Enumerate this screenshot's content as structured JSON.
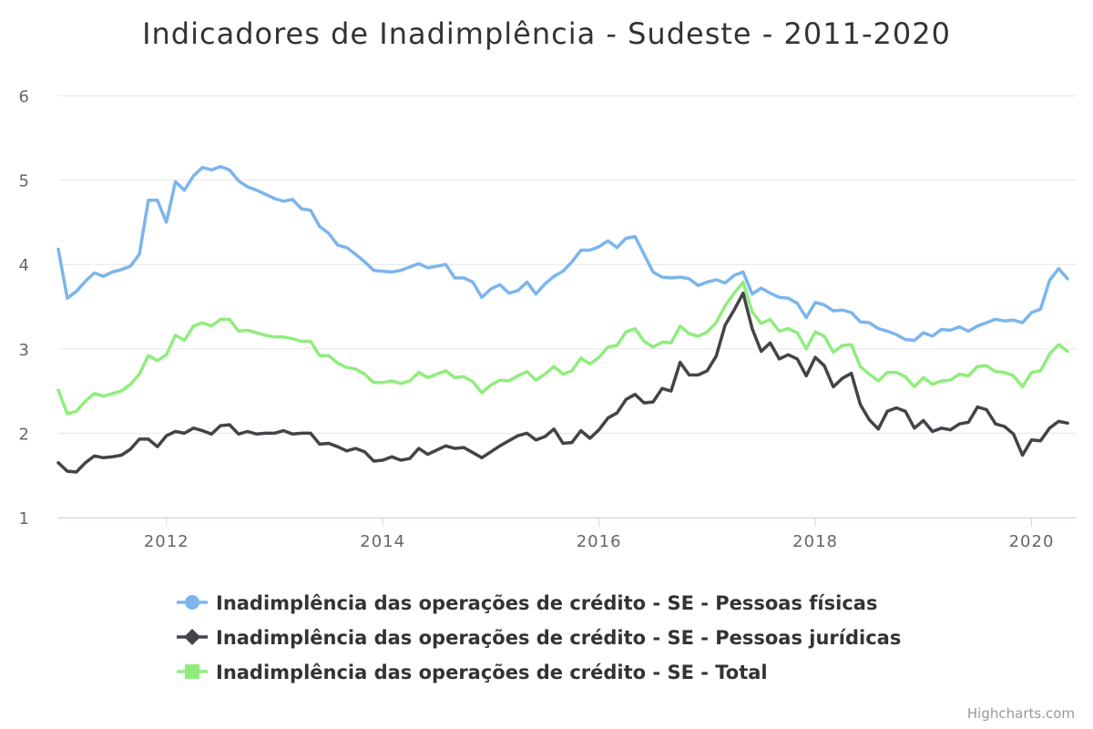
{
  "chart_data": {
    "type": "line",
    "title": "Indicadores de Inadimplência - Sudeste - 2011-2020",
    "xlabel": "",
    "ylabel": "",
    "ylim": [
      1,
      6
    ],
    "xlim": [
      "2011-01",
      "2020-06"
    ],
    "yticks": [
      "1",
      "2",
      "3",
      "4",
      "5",
      "6"
    ],
    "xticks": [
      {
        "label": "2012",
        "value": 2012
      },
      {
        "label": "2014",
        "value": 2014
      },
      {
        "label": "2016",
        "value": 2016
      },
      {
        "label": "2018",
        "value": 2018
      },
      {
        "label": "2020",
        "value": 2020
      }
    ],
    "grid": true,
    "legend_position": "bottom-center",
    "x_start": "2011-01",
    "series": [
      {
        "name": "Inadimplência das operações de crédito - SE - Pessoas físicas",
        "color": "#7cb5ec",
        "marker": "circle",
        "values": [
          4.18,
          3.6,
          3.68,
          3.8,
          3.9,
          3.86,
          3.91,
          3.94,
          3.98,
          4.12,
          4.76,
          4.76,
          4.5,
          4.98,
          4.88,
          5.05,
          5.15,
          5.12,
          5.16,
          5.12,
          4.99,
          4.92,
          4.88,
          4.83,
          4.78,
          4.75,
          4.77,
          4.66,
          4.64,
          4.45,
          4.37,
          4.23,
          4.2,
          4.12,
          4.03,
          3.93,
          3.92,
          3.91,
          3.93,
          3.97,
          4.01,
          3.96,
          3.98,
          4.0,
          3.84,
          3.84,
          3.79,
          3.61,
          3.71,
          3.76,
          3.66,
          3.69,
          3.79,
          3.65,
          3.77,
          3.86,
          3.92,
          4.03,
          4.17,
          4.17,
          4.21,
          4.28,
          4.2,
          4.31,
          4.33,
          4.12,
          3.91,
          3.85,
          3.84,
          3.85,
          3.83,
          3.75,
          3.79,
          3.82,
          3.78,
          3.87,
          3.91,
          3.65,
          3.72,
          3.66,
          3.61,
          3.6,
          3.54,
          3.37,
          3.55,
          3.52,
          3.45,
          3.46,
          3.43,
          3.32,
          3.31,
          3.24,
          3.21,
          3.17,
          3.11,
          3.1,
          3.19,
          3.15,
          3.23,
          3.22,
          3.26,
          3.21,
          3.27,
          3.31,
          3.35,
          3.33,
          3.34,
          3.31,
          3.43,
          3.47,
          3.81,
          3.95,
          3.83
        ]
      },
      {
        "name": "Inadimplência das operações de crédito - SE - Pessoas jurídicas",
        "color": "#434348",
        "marker": "diamond",
        "values": [
          1.65,
          1.55,
          1.54,
          1.65,
          1.73,
          1.71,
          1.72,
          1.74,
          1.81,
          1.93,
          1.93,
          1.84,
          1.97,
          2.02,
          2.0,
          2.06,
          2.03,
          1.99,
          2.09,
          2.1,
          1.99,
          2.02,
          1.99,
          2.0,
          2.0,
          2.03,
          1.99,
          2.0,
          2.0,
          1.87,
          1.88,
          1.84,
          1.79,
          1.82,
          1.78,
          1.67,
          1.68,
          1.72,
          1.68,
          1.7,
          1.82,
          1.75,
          1.8,
          1.85,
          1.82,
          1.83,
          1.77,
          1.71,
          1.78,
          1.85,
          1.91,
          1.97,
          2.0,
          1.92,
          1.96,
          2.05,
          1.88,
          1.89,
          2.03,
          1.94,
          2.04,
          2.18,
          2.24,
          2.4,
          2.46,
          2.36,
          2.37,
          2.53,
          2.5,
          2.84,
          2.69,
          2.69,
          2.74,
          2.91,
          3.28,
          3.46,
          3.66,
          3.24,
          2.97,
          3.07,
          2.88,
          2.93,
          2.88,
          2.68,
          2.9,
          2.8,
          2.55,
          2.65,
          2.71,
          2.34,
          2.16,
          2.05,
          2.26,
          2.3,
          2.26,
          2.06,
          2.15,
          2.02,
          2.06,
          2.04,
          2.11,
          2.13,
          2.31,
          2.28,
          2.11,
          2.08,
          1.99,
          1.74,
          1.92,
          1.91,
          2.06,
          2.14,
          2.12
        ]
      },
      {
        "name": "Inadimplência das operações de crédito - SE - Total",
        "color": "#90ed7d",
        "marker": "square",
        "values": [
          2.51,
          2.23,
          2.26,
          2.38,
          2.47,
          2.44,
          2.47,
          2.5,
          2.58,
          2.7,
          2.92,
          2.86,
          2.93,
          3.16,
          3.1,
          3.27,
          3.31,
          3.27,
          3.35,
          3.35,
          3.21,
          3.22,
          3.19,
          3.16,
          3.14,
          3.14,
          3.12,
          3.09,
          3.09,
          2.92,
          2.92,
          2.83,
          2.78,
          2.76,
          2.7,
          2.6,
          2.6,
          2.62,
          2.59,
          2.62,
          2.72,
          2.66,
          2.7,
          2.74,
          2.66,
          2.67,
          2.61,
          2.48,
          2.57,
          2.63,
          2.62,
          2.68,
          2.73,
          2.63,
          2.7,
          2.79,
          2.7,
          2.74,
          2.89,
          2.82,
          2.9,
          3.02,
          3.04,
          3.2,
          3.24,
          3.09,
          3.02,
          3.08,
          3.07,
          3.27,
          3.18,
          3.15,
          3.2,
          3.31,
          3.51,
          3.66,
          3.79,
          3.44,
          3.3,
          3.35,
          3.21,
          3.24,
          3.19,
          3.0,
          3.2,
          3.15,
          2.96,
          3.04,
          3.05,
          2.79,
          2.7,
          2.62,
          2.72,
          2.72,
          2.67,
          2.55,
          2.66,
          2.58,
          2.62,
          2.63,
          2.7,
          2.68,
          2.79,
          2.8,
          2.73,
          2.72,
          2.68,
          2.55,
          2.72,
          2.74,
          2.94,
          3.05,
          2.97
        ]
      }
    ]
  },
  "credits": "Highcharts.com"
}
